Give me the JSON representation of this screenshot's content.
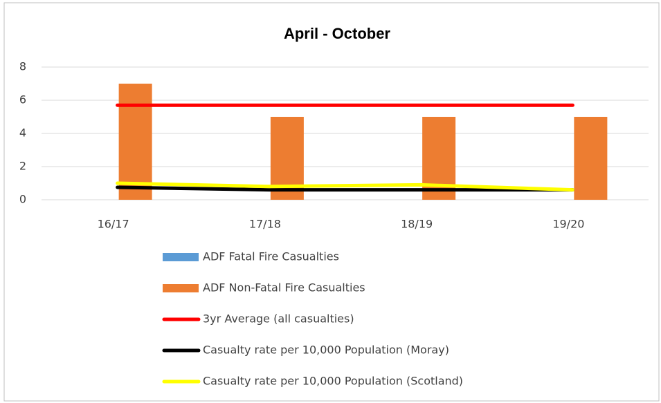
{
  "chart_data": {
    "type": "bar",
    "title": "April - October",
    "categories": [
      "16/17",
      "17/18",
      "18/19",
      "19/20"
    ],
    "series": [
      {
        "name": "ADF Fatal Fire Casualties",
        "type": "bar",
        "color": "#5b9bd5",
        "values": [
          0,
          0,
          0,
          0
        ]
      },
      {
        "name": "ADF Non-Fatal Fire Casualties",
        "type": "bar",
        "color": "#ed7d31",
        "values": [
          7,
          5,
          5,
          5
        ]
      },
      {
        "name": "3yr Average (all casualties)",
        "type": "line",
        "color": "#ff0000",
        "values": [
          5.7,
          5.7,
          5.7,
          5.7
        ]
      },
      {
        "name": "Casualty rate per 10,000 Population (Moray)",
        "type": "line",
        "color": "#000000",
        "values": [
          0.75,
          0.6,
          0.6,
          0.6
        ]
      },
      {
        "name": "Casualty rate per 10,000 Population (Scotland)",
        "type": "line",
        "color": "#ffff00",
        "values": [
          1.0,
          0.8,
          0.9,
          0.6
        ]
      }
    ],
    "ylim": [
      0,
      8
    ],
    "yticks": [
      0,
      2,
      4,
      6,
      8
    ],
    "grid": true
  }
}
